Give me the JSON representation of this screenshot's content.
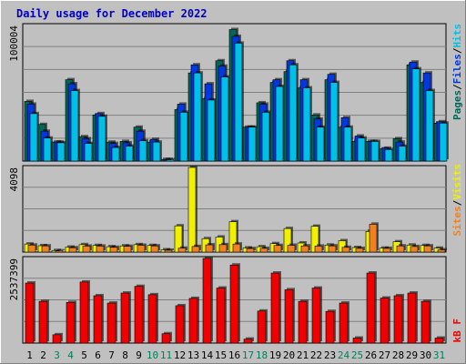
{
  "chart_data": [
    {
      "panel": "hits",
      "type": "bar",
      "title": "Daily usage for December 2022",
      "ymax_label": "100004",
      "ylim": [
        0,
        100004
      ],
      "legend": [
        "Pages",
        "/",
        "Files",
        "/",
        "Hits"
      ],
      "colors": {
        "Hits": "#00c0e8",
        "Files": "#0038e0",
        "Pages": "#006858"
      },
      "categories": [
        "1",
        "2",
        "3",
        "4",
        "5",
        "6",
        "7",
        "8",
        "9",
        "10",
        "11",
        "12",
        "13",
        "14",
        "15",
        "16",
        "17",
        "18",
        "19",
        "20",
        "21",
        "22",
        "23",
        "24",
        "25",
        "26",
        "27",
        "28",
        "29",
        "30",
        "31"
      ],
      "series": [
        {
          "name": "Hits",
          "values": [
            35000,
            17000,
            13500,
            52000,
            13000,
            33000,
            10000,
            11000,
            15000,
            14000,
            1000,
            36000,
            65000,
            45000,
            62000,
            87000,
            25000,
            36000,
            55000,
            71000,
            54000,
            25000,
            58000,
            25000,
            17000,
            14500,
            8500,
            11000,
            68000,
            52000,
            28000
          ]
        },
        {
          "name": "Files",
          "values": [
            42000,
            22000,
            14000,
            57000,
            16500,
            35000,
            13000,
            13500,
            22000,
            16000,
            1200,
            42000,
            71000,
            57000,
            70000,
            92000,
            25000,
            42000,
            60000,
            74000,
            60000,
            31000,
            64000,
            32000,
            18500,
            14500,
            9500,
            14000,
            73000,
            65000,
            29000
          ]
        },
        {
          "name": "Pages",
          "values": [
            44000,
            27000,
            14000,
            60000,
            18000,
            34000,
            14000,
            14500,
            25000,
            14000,
            1200,
            38000,
            65000,
            46000,
            74000,
            97000,
            25000,
            43000,
            58000,
            66000,
            54000,
            34000,
            60000,
            25000,
            14500,
            14500,
            9000,
            16500,
            71000,
            58000,
            28000
          ]
        }
      ]
    },
    {
      "panel": "visits",
      "type": "bar",
      "ymax_label": "4098",
      "ylim": [
        0,
        4098
      ],
      "legend": [
        "Sites",
        "/",
        "Visits"
      ],
      "colors": {
        "Visits": "#f0f000",
        "Sites": "#f08020"
      },
      "series": [
        {
          "name": "Visits",
          "values": [
            390,
            310,
            75,
            240,
            360,
            320,
            260,
            300,
            360,
            320,
            110,
            1270,
            4098,
            650,
            730,
            1470,
            200,
            260,
            410,
            1140,
            440,
            1250,
            340,
            550,
            220,
            1000,
            190,
            500,
            340,
            320,
            190
          ]
        },
        {
          "name": "Sites",
          "values": [
            340,
            300,
            60,
            210,
            290,
            290,
            230,
            280,
            330,
            300,
            90,
            190,
            270,
            350,
            360,
            390,
            170,
            180,
            320,
            330,
            300,
            290,
            300,
            230,
            180,
            1350,
            180,
            300,
            270,
            300,
            110
          ]
        }
      ]
    },
    {
      "panel": "kbytes",
      "type": "bar",
      "ymax_label": "2537399",
      "ylim": [
        0,
        2537399
      ],
      "legend": [
        "kB F"
      ],
      "colors": {
        "kB F": "#f00000"
      },
      "series": [
        {
          "name": "kB F",
          "values": [
            1800000,
            1250000,
            250000,
            1220000,
            1830000,
            1420000,
            1200000,
            1500000,
            1700000,
            1450000,
            280000,
            1120000,
            1340000,
            2537399,
            1650000,
            2340000,
            120000,
            960000,
            2100000,
            1600000,
            1250000,
            1650000,
            950000,
            1200000,
            150000,
            2100000,
            1350000,
            1420000,
            1500000,
            1250000,
            150000
          ]
        }
      ]
    }
  ],
  "footer": {
    "weekend_days": [
      3,
      4,
      10,
      11,
      17,
      18,
      24,
      25,
      31
    ]
  }
}
